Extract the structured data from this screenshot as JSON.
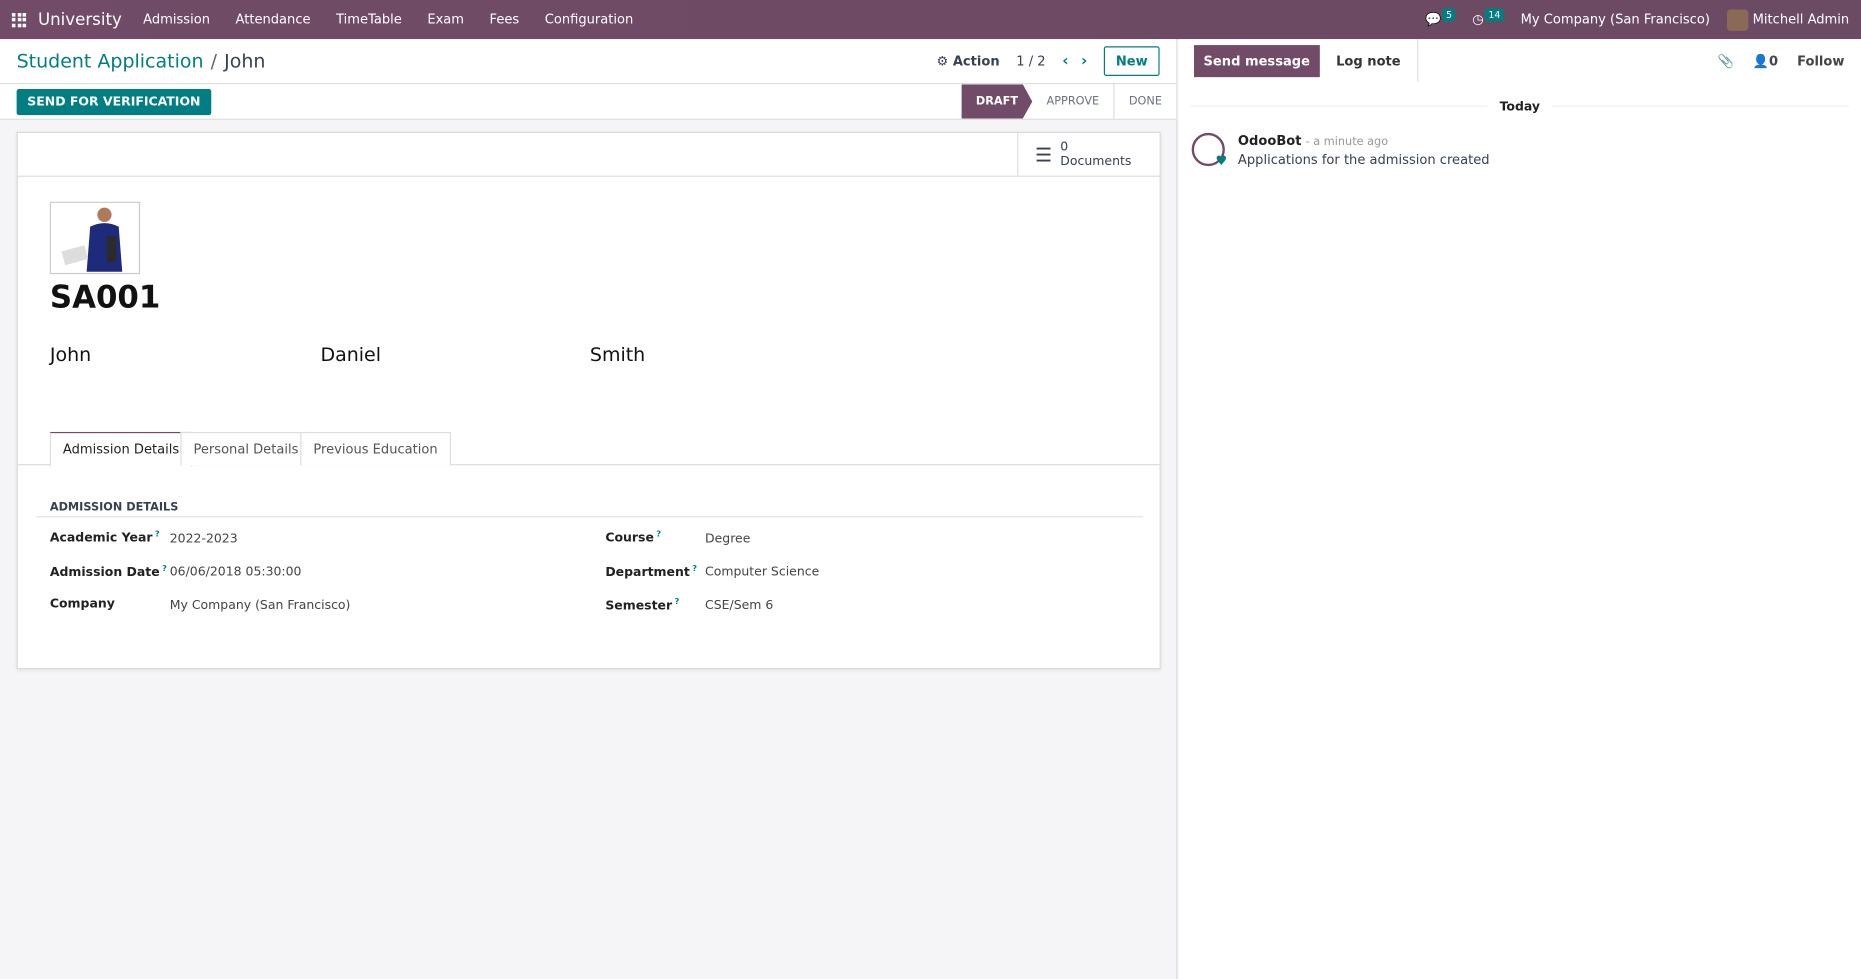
{
  "topbar": {
    "app": "University",
    "menu": [
      "Admission",
      "Attendance",
      "TimeTable",
      "Exam",
      "Fees",
      "Configuration"
    ],
    "messages_count": "5",
    "activities_count": "14",
    "company": "My Company (San Francisco)",
    "user": "Mitchell Admin"
  },
  "control": {
    "breadcrumb_parent": "Student Application",
    "breadcrumb_current": "John",
    "action": "Action",
    "pager": "1 / 2",
    "new": "New"
  },
  "status": {
    "button": "SEND FOR VERIFICATION",
    "stages": [
      "DRAFT",
      "APPROVE",
      "DONE"
    ],
    "active_stage": "DRAFT"
  },
  "form": {
    "documents_count": "0",
    "documents_label": "Documents",
    "code": "SA001",
    "first_name": "John",
    "middle_name": "Daniel",
    "last_name": "Smith",
    "tabs": [
      "Admission Details",
      "Personal Details",
      "Previous Education"
    ],
    "section": "ADMISSION DETAILS",
    "fields": [
      {
        "label": "Academic Year",
        "value": "2022-2023",
        "help": "?"
      },
      {
        "label": "Admission Date",
        "value": "06/06/2018 05:30:00",
        "help": "?"
      },
      {
        "label": "Company",
        "value": "My Company (San Francisco)",
        "help": ""
      },
      {
        "label": "Course",
        "value": "Degree",
        "help": "?"
      },
      {
        "label": "Department",
        "value": "Computer Science",
        "help": "?"
      },
      {
        "label": "Semester",
        "value": "CSE/Sem 6",
        "help": "?"
      }
    ]
  },
  "chatter": {
    "send": "Send message",
    "log": "Log note",
    "followers": "0",
    "follow": "Follow",
    "today": "Today",
    "author": "OdooBot",
    "time": "- a minute ago",
    "body": "Applications for the admission created"
  },
  "colors": {
    "primary": "#714b67",
    "accent": "#017e84"
  }
}
